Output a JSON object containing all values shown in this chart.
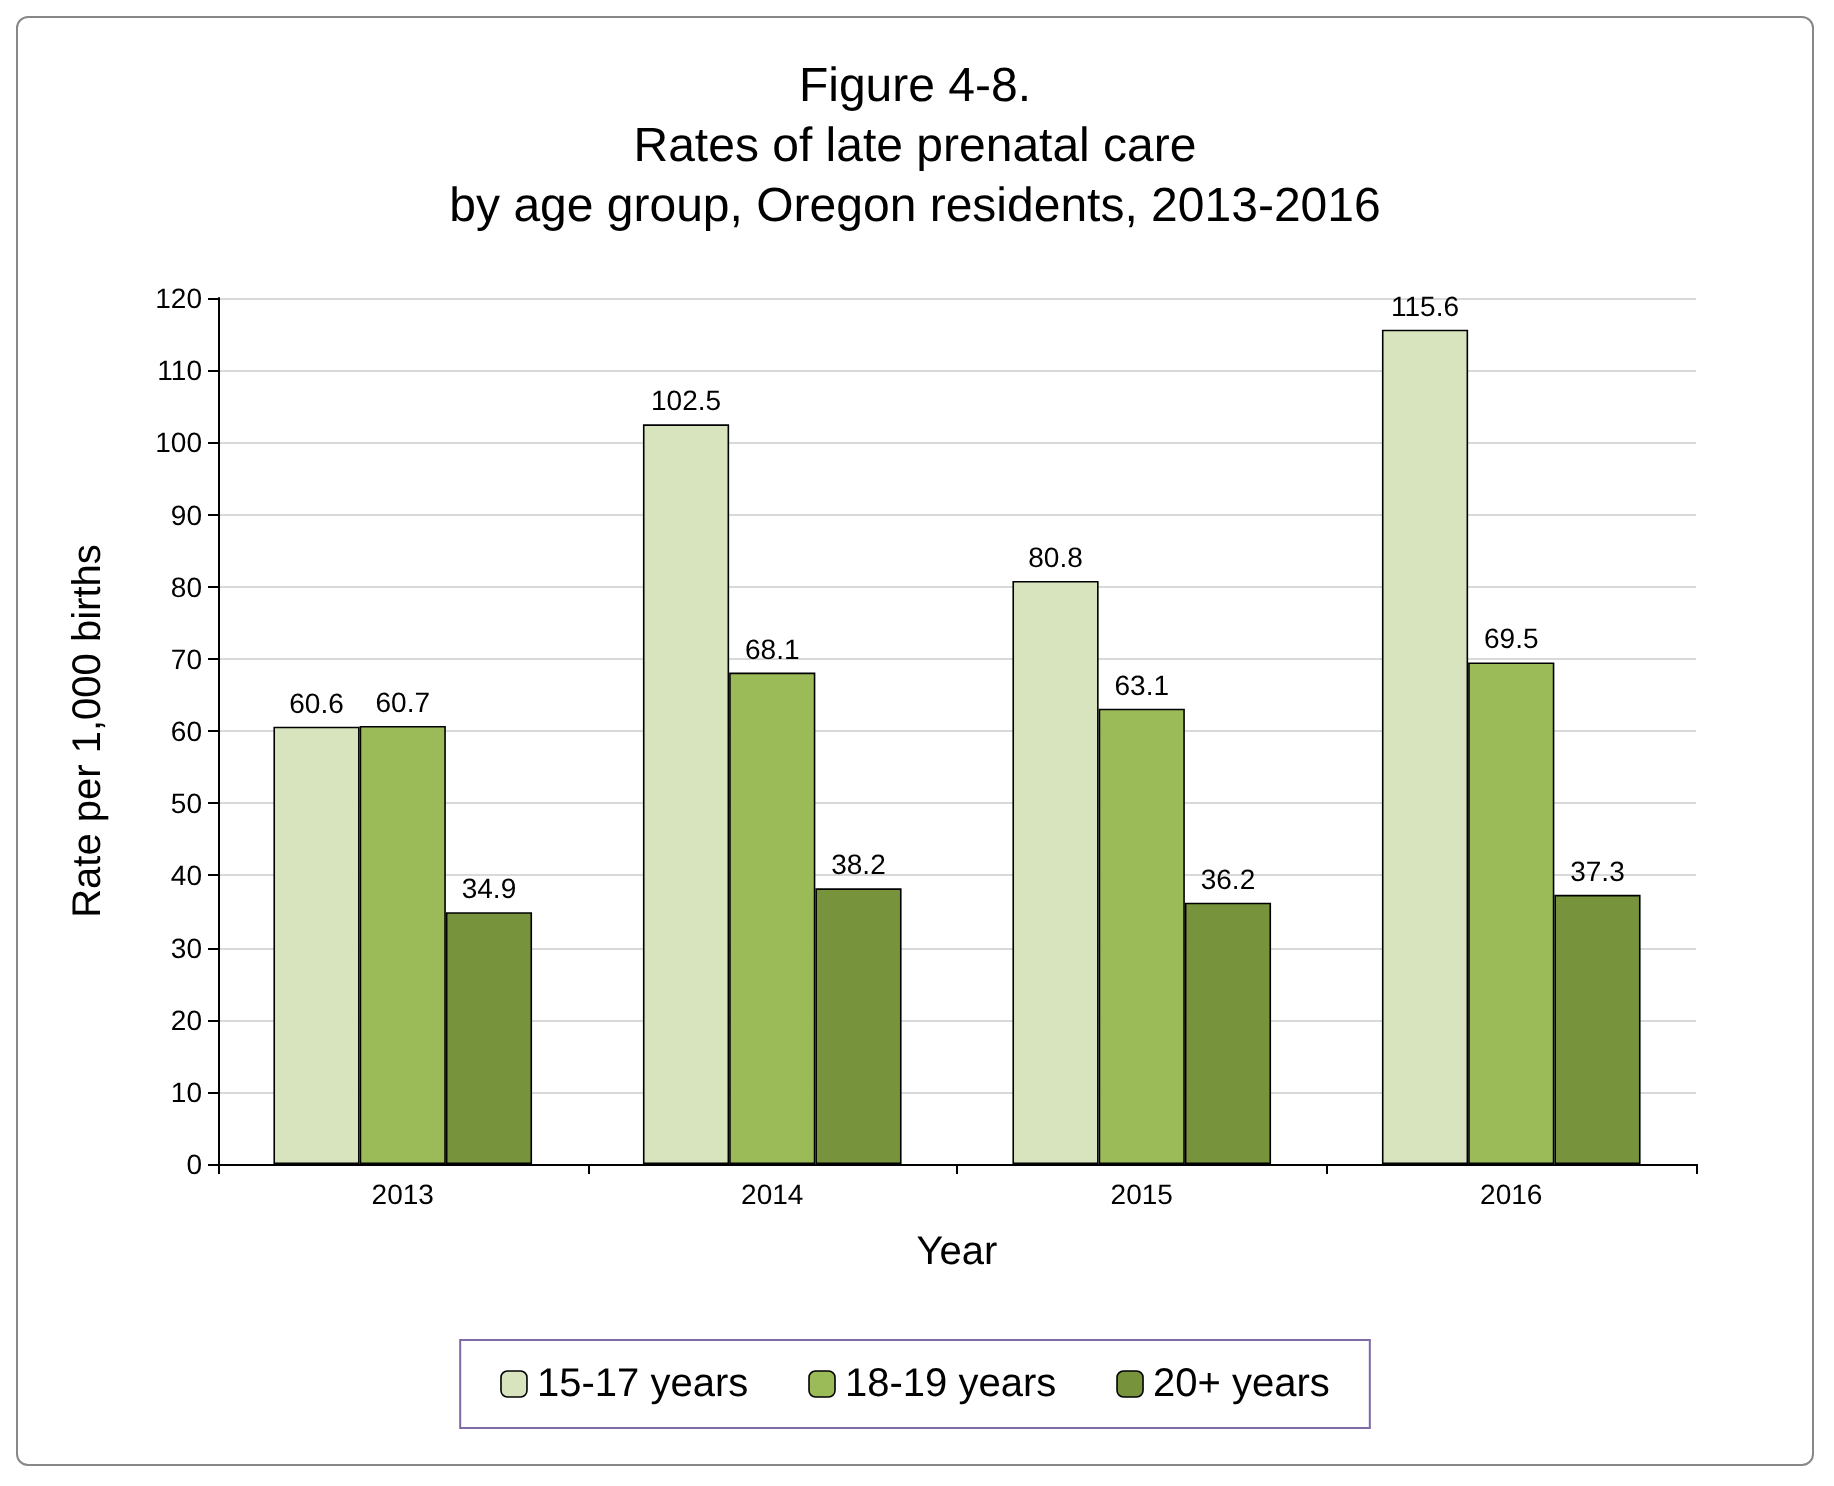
{
  "chart_data": {
    "type": "bar",
    "title": "Figure 4-8.\nRates of late prenatal care\nby age group, Oregon residents, 2013-2016",
    "xlabel": "Year",
    "ylabel": "Rate per 1,000 births",
    "categories": [
      "2013",
      "2014",
      "2015",
      "2016"
    ],
    "series": [
      {
        "name": "15-17 years",
        "color": "#d7e4bd",
        "values": [
          60.6,
          102.5,
          80.8,
          115.6
        ]
      },
      {
        "name": "18-19 years",
        "color": "#9bbb59",
        "values": [
          60.7,
          68.1,
          63.1,
          69.5
        ]
      },
      {
        "name": "20+ years",
        "color": "#77933c",
        "values": [
          34.9,
          38.2,
          36.2,
          37.3
        ]
      }
    ],
    "ylim": [
      0,
      120
    ],
    "yticks": [
      0,
      10,
      20,
      30,
      40,
      50,
      60,
      70,
      80,
      90,
      100,
      110,
      120
    ],
    "grid": "y",
    "legend": "bottom",
    "data_labels": true
  }
}
